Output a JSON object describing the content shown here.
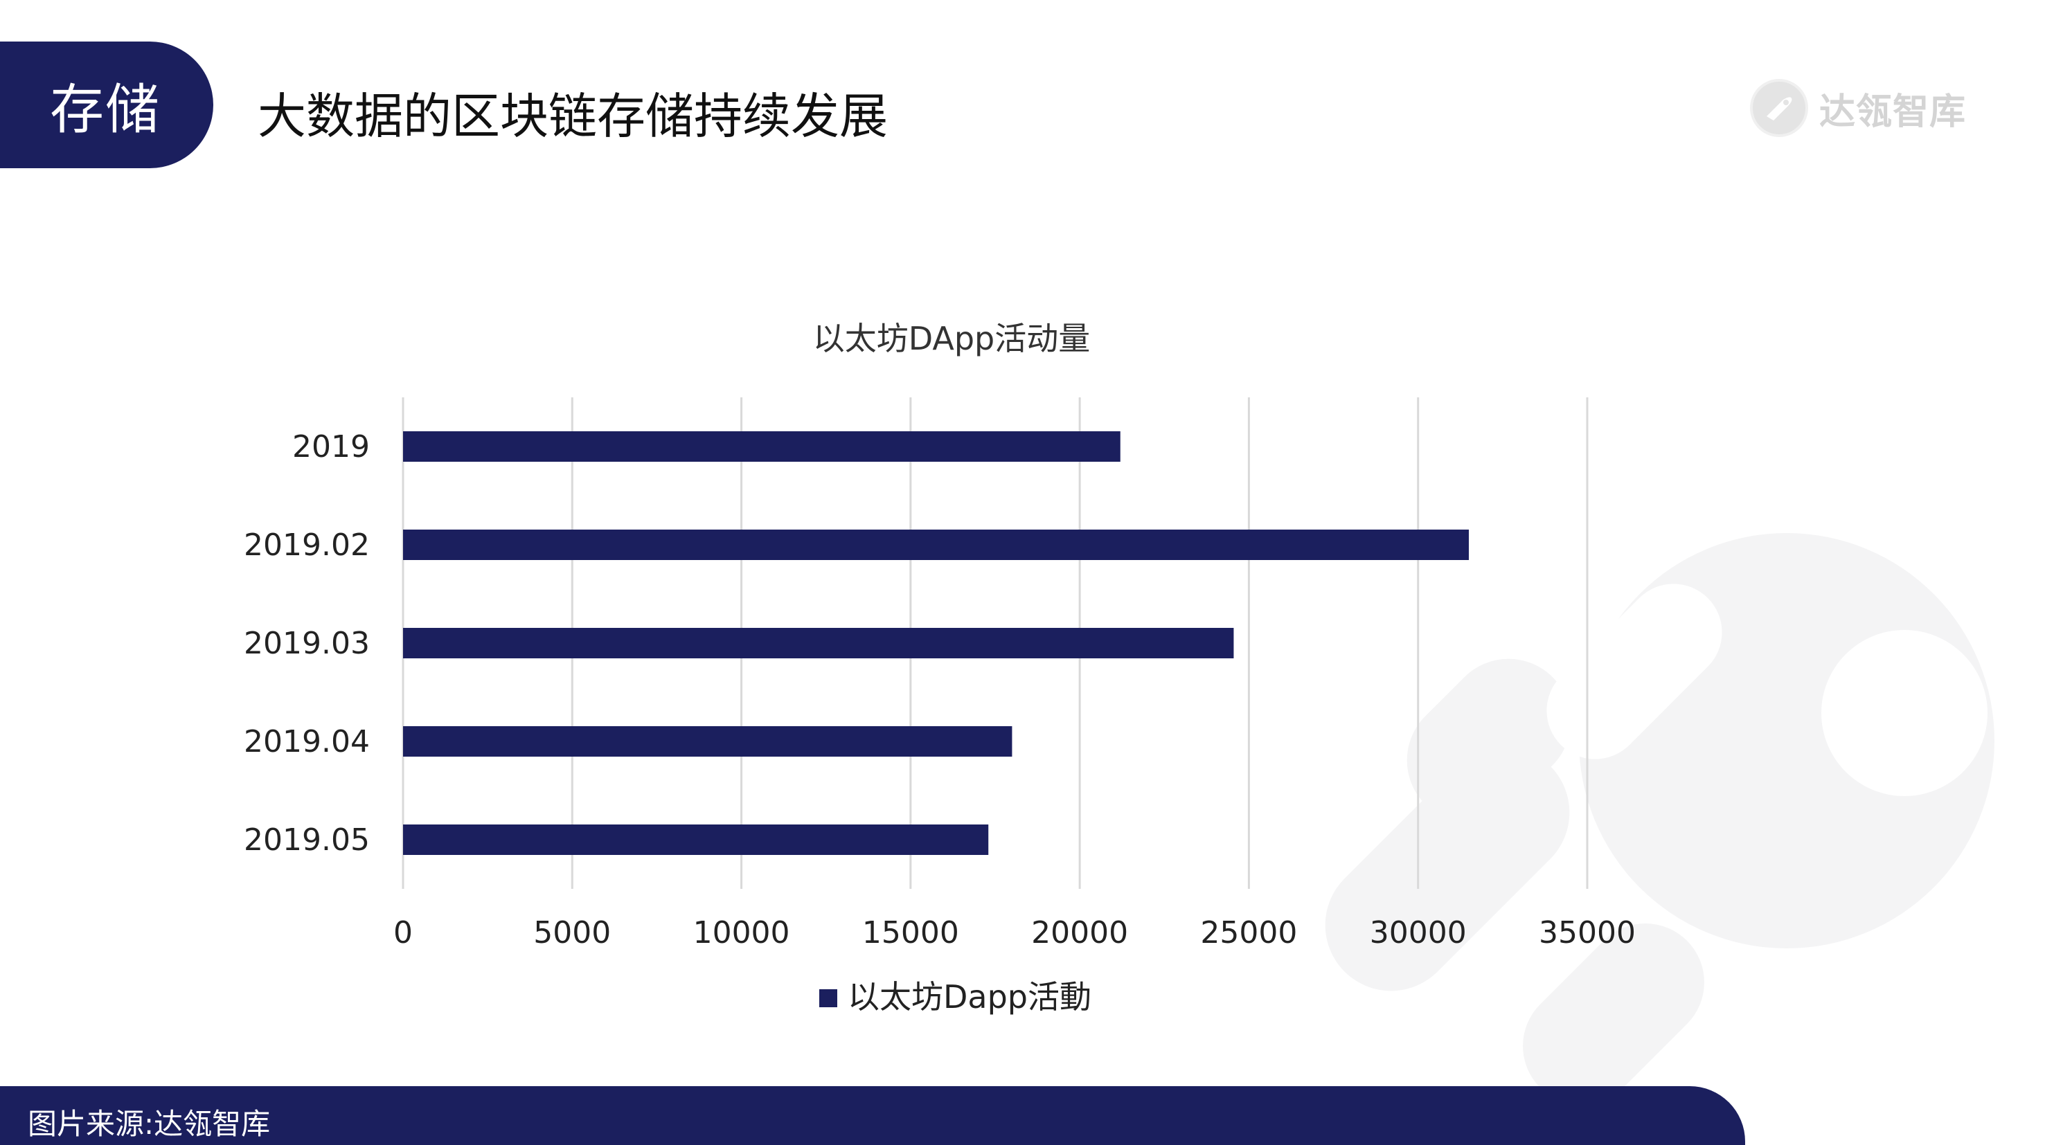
{
  "header": {
    "section_tag": "存储",
    "title": "大数据的区块链存储持续发展"
  },
  "brand": {
    "name": "达瓴智库",
    "logo_icon": "rocket-badge-icon"
  },
  "footer": {
    "source_text": "图片来源:达瓴智库"
  },
  "colors": {
    "primary": "#1b1f5e",
    "bar": "#1b1f5e",
    "grid": "#d9d9d9",
    "text": "#222222",
    "watermark": "#f3f3f3"
  },
  "chart_data": {
    "type": "bar",
    "orientation": "horizontal",
    "title": "以太坊DApp活动量",
    "categories": [
      "2019",
      "2019.02",
      "2019.03",
      "2019.04",
      "2019.05"
    ],
    "series": [
      {
        "name": "以太坊Dapp活動",
        "values": [
          21200,
          31500,
          24550,
          18000,
          17300
        ]
      }
    ],
    "xlim": [
      0,
      35000
    ],
    "xticks": [
      0,
      5000,
      10000,
      15000,
      20000,
      25000,
      30000,
      35000
    ],
    "xtick_labels": [
      "0",
      "5000",
      "10000",
      "15000",
      "20000",
      "25000",
      "30000",
      "35000"
    ],
    "grid": true,
    "legend_position": "bottom"
  }
}
